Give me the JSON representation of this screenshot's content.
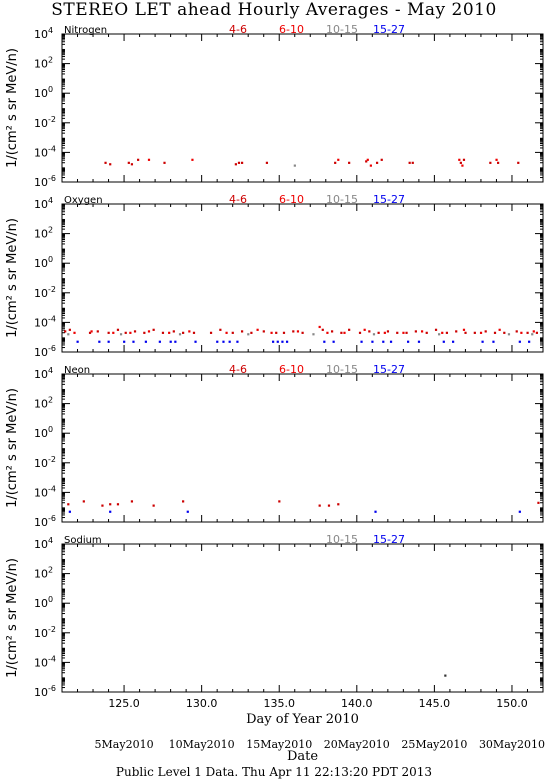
{
  "title": "STEREO LET ahead Hourly Averages - May 2010",
  "xlabel": "Day of Year 2010",
  "date_label": "Date",
  "footer": "Public Level 1 Data. Thu Apr 11 22:13:20 PDT 2013",
  "ylabel": "1/(cm² s sr MeV/n)",
  "colors": {
    "4-6": "#cc0000",
    "6-10": "#ee0000",
    "10-15": "#888888",
    "15-27": "#0000ee",
    "other": "#333333"
  },
  "x_ticks": [
    "125.0",
    "130.0",
    "135.0",
    "140.0",
    "145.0",
    "150.0"
  ],
  "date_ticks": [
    "5May2010",
    "10May2010",
    "15May2010",
    "20May2010",
    "25May2010",
    "30May2010"
  ],
  "y_ticks": [
    "10",
    "10",
    "10",
    "10",
    "10",
    "10"
  ],
  "y_tick_exponents": [
    "4",
    "2",
    "0",
    "-2",
    "-4",
    "-6"
  ],
  "chart_data": [
    {
      "type": "scatter",
      "panel": "Nitrogen",
      "legend": [
        "4-6",
        "6-10",
        "10-15",
        "15-27"
      ],
      "xlim": [
        121,
        152
      ],
      "ylim_exponent": [
        -6,
        4
      ],
      "yscale": "log",
      "series": [
        {
          "name": "4-6",
          "points": [
            [
              123.8,
              2e-05
            ],
            [
              124.1,
              1.6e-05
            ],
            [
              125.3,
              2e-05
            ],
            [
              125.5,
              1.6e-05
            ],
            [
              125.9,
              3.2e-05
            ],
            [
              127.6,
              2e-05
            ],
            [
              132.2,
              1.6e-05
            ],
            [
              132.4,
              2e-05
            ],
            [
              132.6,
              2e-05
            ],
            [
              134.2,
              2e-05
            ],
            [
              138.6,
              2e-05
            ],
            [
              139.5,
              2e-05
            ],
            [
              140.6,
              2.5e-05
            ],
            [
              141.3,
              2e-05
            ],
            [
              141.6,
              3.2e-05
            ],
            [
              143.4,
              2e-05
            ],
            [
              143.6,
              2e-05
            ],
            [
              146.7,
              2e-05
            ],
            [
              146.9,
              3.2e-05
            ],
            [
              148.6,
              2e-05
            ],
            [
              149.1,
              2e-05
            ],
            [
              150.4,
              2e-05
            ]
          ]
        },
        {
          "name": "6-10",
          "points": [
            [
              126.6,
              3.2e-05
            ],
            [
              129.4,
              3.2e-05
            ],
            [
              138.8,
              3.2e-05
            ],
            [
              140.7,
              3.2e-05
            ],
            [
              146.6,
              3.2e-05
            ],
            [
              149.0,
              3.2e-05
            ],
            [
              146.8,
              1.3e-05
            ],
            [
              140.9,
              1.3e-05
            ]
          ]
        },
        {
          "name": "10-15",
          "points": [
            [
              136.0,
              1.3e-05
            ]
          ]
        },
        {
          "name": "15-27",
          "points": []
        }
      ]
    },
    {
      "type": "scatter",
      "panel": "Oxygen",
      "legend": [
        "4-6",
        "6-10",
        "10-15",
        "15-27"
      ],
      "xlim": [
        121,
        152
      ],
      "ylim_exponent": [
        -6,
        4
      ],
      "yscale": "log",
      "series": [
        {
          "name": "4-6",
          "points": [
            [
              121.2,
              2.5e-05
            ],
            [
              121.5,
              3.2e-05
            ],
            [
              122.8,
              2e-05
            ],
            [
              123.3,
              2.5e-05
            ],
            [
              124.0,
              2e-05
            ],
            [
              124.6,
              3.2e-05
            ],
            [
              125.1,
              2e-05
            ],
            [
              125.7,
              2.5e-05
            ],
            [
              126.3,
              2e-05
            ],
            [
              126.9,
              3.2e-05
            ],
            [
              127.5,
              2e-05
            ],
            [
              128.2,
              2.5e-05
            ],
            [
              128.8,
              2e-05
            ],
            [
              129.5,
              2e-05
            ],
            [
              130.6,
              2e-05
            ],
            [
              131.2,
              3.2e-05
            ],
            [
              132.0,
              2e-05
            ],
            [
              132.6,
              2.5e-05
            ],
            [
              133.2,
              2e-05
            ],
            [
              134.0,
              2.5e-05
            ],
            [
              134.8,
              2e-05
            ],
            [
              135.3,
              2e-05
            ],
            [
              135.9,
              2.5e-05
            ],
            [
              136.5,
              2e-05
            ],
            [
              137.8,
              3.2e-05
            ],
            [
              138.4,
              2.5e-05
            ],
            [
              139.0,
              2e-05
            ],
            [
              139.5,
              3.2e-05
            ],
            [
              140.2,
              2e-05
            ],
            [
              140.8,
              2.5e-05
            ],
            [
              141.4,
              2e-05
            ],
            [
              142.0,
              2.5e-05
            ],
            [
              142.6,
              2e-05
            ],
            [
              143.2,
              2e-05
            ],
            [
              143.8,
              2.5e-05
            ],
            [
              144.5,
              2e-05
            ],
            [
              145.1,
              3.2e-05
            ],
            [
              145.8,
              2e-05
            ],
            [
              146.4,
              2.5e-05
            ],
            [
              147.0,
              2e-05
            ],
            [
              147.6,
              2e-05
            ],
            [
              148.3,
              2.5e-05
            ],
            [
              148.9,
              2e-05
            ],
            [
              149.5,
              2e-05
            ],
            [
              150.3,
              2.5e-05
            ],
            [
              151.0,
              2e-05
            ],
            [
              151.6,
              2e-05
            ]
          ]
        },
        {
          "name": "6-10",
          "points": [
            [
              121.8,
              2e-05
            ],
            [
              122.9,
              2.5e-05
            ],
            [
              124.3,
              2e-05
            ],
            [
              125.4,
              2e-05
            ],
            [
              126.6,
              2.5e-05
            ],
            [
              127.9,
              2e-05
            ],
            [
              129.2,
              2.5e-05
            ],
            [
              131.6,
              2e-05
            ],
            [
              133.6,
              3.2e-05
            ],
            [
              134.5,
              2e-05
            ],
            [
              136.2,
              2.5e-05
            ],
            [
              137.6,
              5e-05
            ],
            [
              138.1,
              2e-05
            ],
            [
              139.2,
              2e-05
            ],
            [
              140.5,
              3.2e-05
            ],
            [
              141.8,
              2e-05
            ],
            [
              143.0,
              2e-05
            ],
            [
              144.2,
              2.5e-05
            ],
            [
              145.5,
              2e-05
            ],
            [
              146.9,
              3.2e-05
            ],
            [
              148.0,
              2e-05
            ],
            [
              149.2,
              3.2e-05
            ],
            [
              150.6,
              2e-05
            ],
            [
              151.4,
              2.5e-05
            ]
          ]
        },
        {
          "name": "10-15",
          "points": [
            [
              121.4,
              1.6e-05
            ],
            [
              124.8,
              1.6e-05
            ],
            [
              128.6,
              1.6e-05
            ],
            [
              133.0,
              1.6e-05
            ],
            [
              137.2,
              1.6e-05
            ],
            [
              141.1,
              1.6e-05
            ],
            [
              145.3,
              1.6e-05
            ],
            [
              149.8,
              1.6e-05
            ],
            [
              151.3,
              1.6e-05
            ]
          ]
        },
        {
          "name": "15-27",
          "points": [
            [
              122.0,
              5e-06
            ],
            [
              123.4,
              5e-06
            ],
            [
              124.0,
              5e-06
            ],
            [
              125.0,
              5e-06
            ],
            [
              125.6,
              5e-06
            ],
            [
              126.4,
              5e-06
            ],
            [
              127.3,
              5e-06
            ],
            [
              128.0,
              5e-06
            ],
            [
              128.3,
              5e-06
            ],
            [
              129.6,
              5e-06
            ],
            [
              131.0,
              5e-06
            ],
            [
              131.4,
              5e-06
            ],
            [
              131.8,
              5e-06
            ],
            [
              132.3,
              5e-06
            ],
            [
              134.6,
              5e-06
            ],
            [
              134.9,
              5e-06
            ],
            [
              135.2,
              5e-06
            ],
            [
              135.5,
              5e-06
            ],
            [
              137.9,
              5e-06
            ],
            [
              138.5,
              5e-06
            ],
            [
              140.3,
              5e-06
            ],
            [
              141.0,
              5e-06
            ],
            [
              141.7,
              5e-06
            ],
            [
              142.2,
              5e-06
            ],
            [
              143.3,
              5e-06
            ],
            [
              144.0,
              5e-06
            ],
            [
              145.6,
              5e-06
            ],
            [
              146.2,
              5e-06
            ],
            [
              148.1,
              5e-06
            ],
            [
              148.8,
              5e-06
            ],
            [
              150.5,
              5e-06
            ],
            [
              151.1,
              5e-06
            ]
          ]
        }
      ]
    },
    {
      "type": "scatter",
      "panel": "Neon",
      "legend": [
        "4-6",
        "6-10",
        "10-15",
        "15-27"
      ],
      "xlim": [
        121,
        152
      ],
      "ylim_exponent": [
        -6,
        4
      ],
      "yscale": "log",
      "series": [
        {
          "name": "4-6",
          "points": [
            [
              121.4,
              1.6e-05
            ],
            [
              122.4,
              2.5e-05
            ],
            [
              123.6,
              1.3e-05
            ],
            [
              124.1,
              1.6e-05
            ],
            [
              124.6,
              1.6e-05
            ],
            [
              125.5,
              2.5e-05
            ],
            [
              126.9,
              1.3e-05
            ],
            [
              128.8,
              2.5e-05
            ],
            [
              135.0,
              2.5e-05
            ],
            [
              137.6,
              1.3e-05
            ],
            [
              138.2,
              1.3e-05
            ],
            [
              138.8,
              1.6e-05
            ],
            [
              151.7,
              2e-05
            ]
          ]
        },
        {
          "name": "6-10",
          "points": []
        },
        {
          "name": "10-15",
          "points": []
        },
        {
          "name": "15-27",
          "points": [
            [
              121.5,
              5e-06
            ],
            [
              124.1,
              5e-06
            ],
            [
              129.1,
              5e-06
            ],
            [
              141.2,
              5e-06
            ],
            [
              150.5,
              5e-06
            ]
          ]
        }
      ]
    },
    {
      "type": "scatter",
      "panel": "Sodium",
      "legend": [
        "10-15",
        "15-27"
      ],
      "xlim": [
        121,
        152
      ],
      "ylim_exponent": [
        -6,
        4
      ],
      "yscale": "log",
      "series": [
        {
          "name": "10-15",
          "points": []
        },
        {
          "name": "15-27",
          "points": []
        },
        {
          "name": "other",
          "points": [
            [
              145.7,
              1.3e-05
            ]
          ]
        }
      ]
    }
  ]
}
